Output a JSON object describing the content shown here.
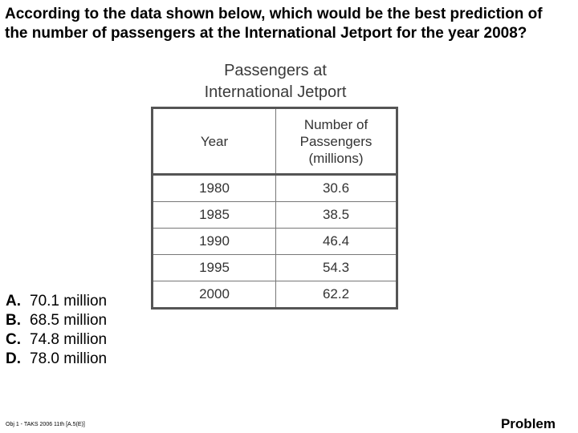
{
  "question": {
    "line1": "According to the data shown below, which would be the best prediction of",
    "line2": "the number of passengers at the International Jetport for the year 2008?"
  },
  "table": {
    "title_line1": "Passengers at",
    "title_line2": "International Jetport",
    "headers": {
      "year": "Year",
      "passengers_line1": "Number of",
      "passengers_line2": "Passengers",
      "passengers_line3": "(millions)"
    },
    "rows": [
      {
        "year": "1980",
        "passengers": "30.6"
      },
      {
        "year": "1985",
        "passengers": "38.5"
      },
      {
        "year": "1990",
        "passengers": "46.4"
      },
      {
        "year": "1995",
        "passengers": "54.3"
      },
      {
        "year": "2000",
        "passengers": "62.2"
      }
    ]
  },
  "choices": [
    {
      "letter": "A.",
      "text": "70.1 million"
    },
    {
      "letter": "B.",
      "text": "68.5 million"
    },
    {
      "letter": "C.",
      "text": "74.8 million"
    },
    {
      "letter": "D.",
      "text": "78.0 million"
    }
  ],
  "footnote": "Obj 1 - TAKS 2006 11th [A.5(E)]",
  "problem_label": "Problem"
}
